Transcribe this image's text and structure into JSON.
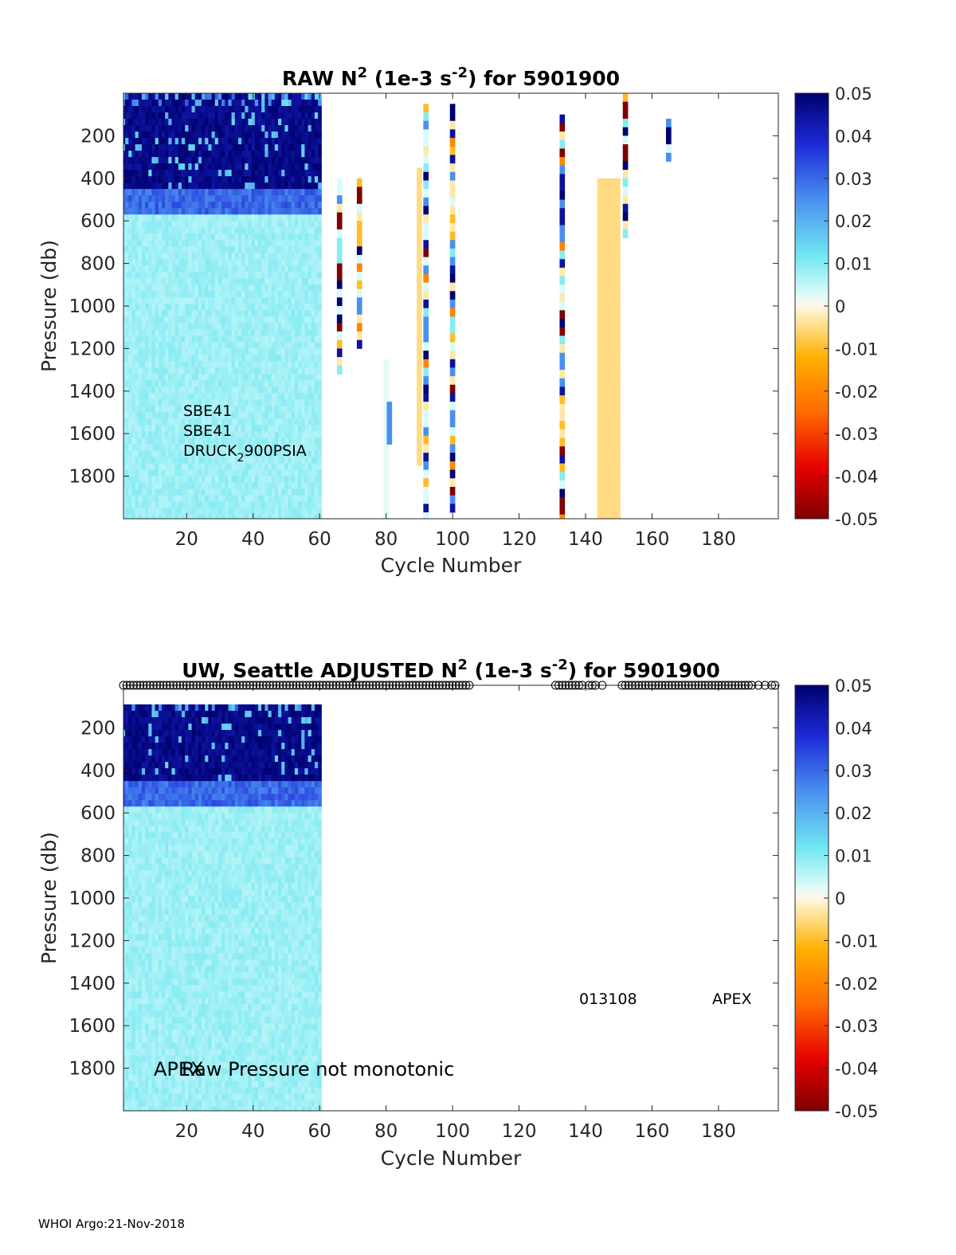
{
  "chart_data": [
    {
      "type": "heatmap",
      "title_parts": [
        "RAW N",
        "2",
        " (1e-3 s",
        "-2",
        ") for 5901900"
      ],
      "xlabel": "Cycle Number",
      "ylabel": "Pressure (db)",
      "xlim": [
        1,
        198
      ],
      "ylim": [
        2000,
        0
      ],
      "x_ticks": [
        "20",
        "40",
        "60",
        "80",
        "100",
        "120",
        "140",
        "160",
        "180"
      ],
      "y_ticks": [
        "200",
        "400",
        "600",
        "800",
        "1000",
        "1200",
        "1400",
        "1600",
        "1800"
      ],
      "colorbar": {
        "range": [
          -0.05,
          0.05
        ],
        "ticks": [
          "0.05",
          "0.04",
          "0.03",
          "0.02",
          "0.01",
          "0",
          "-0.01",
          "-0.02",
          "-0.03",
          "-0.04",
          "-0.05"
        ]
      },
      "annotations": [
        "SBE41",
        "SBE41",
        "DRUCK",
        "2",
        "900PSIA"
      ],
      "data_summary": {
        "cycles_1_60": [
          {
            "p_range": [
              0,
              450
            ],
            "value": 0.05
          },
          {
            "p_range": [
              450,
              550
            ],
            "value": 0.03
          },
          {
            "p_range": [
              550,
              2000
            ],
            "value": 0.008
          }
        ],
        "sparse_columns": [
          {
            "cycle": 66,
            "p_range": [
              400,
              1300
            ],
            "value": "mixed"
          },
          {
            "cycle": 72,
            "p_range": [
              400,
              1200
            ],
            "value": "mixed"
          },
          {
            "cycle": 80,
            "p_range": [
              1250,
              2000
            ],
            "value": 0.002
          },
          {
            "cycle": 81,
            "p_range": [
              1450,
              1650
            ],
            "value": 0.025
          },
          {
            "cycle": 90,
            "p_range": [
              350,
              1750
            ],
            "value": -0.005
          },
          {
            "cycle": 92,
            "p_range": [
              50,
              2000
            ],
            "value": "mixed"
          },
          {
            "cycle": 100,
            "p_range": [
              50,
              1950
            ],
            "value": "mixed"
          },
          {
            "cycle": 133,
            "p_range": [
              100,
              2000
            ],
            "value": "mixed"
          },
          {
            "cycle": 147,
            "p_range": [
              400,
              2000
            ],
            "value": -0.005
          },
          {
            "cycle": 152,
            "p_range": [
              0,
              650
            ],
            "value": "mixed"
          },
          {
            "cycle": 165,
            "p_range": [
              120,
              320
            ],
            "value": "mixed"
          }
        ]
      }
    },
    {
      "type": "heatmap",
      "title_parts": [
        "UW, Seattle  ADJUSTED N",
        "2",
        " (1e-3 s",
        "-2",
        ") for 5901900"
      ],
      "xlabel": "Cycle Number",
      "ylabel": "Pressure (db)",
      "xlim": [
        1,
        198
      ],
      "ylim": [
        2000,
        0
      ],
      "x_ticks": [
        "20",
        "40",
        "60",
        "80",
        "100",
        "120",
        "140",
        "160",
        "180"
      ],
      "y_ticks": [
        "200",
        "400",
        "600",
        "800",
        "1000",
        "1200",
        "1400",
        "1600",
        "1800"
      ],
      "colorbar": {
        "range": [
          -0.05,
          0.05
        ],
        "ticks": [
          "0.05",
          "0.04",
          "0.03",
          "0.02",
          "0.01",
          "0",
          "-0.01",
          "-0.02",
          "-0.03",
          "-0.04",
          "-0.05"
        ]
      },
      "annotations": [
        "013108",
        "APEX",
        "APEX",
        "Raw Pressure not monotonic"
      ],
      "flagged_cycles": [
        1,
        2,
        3,
        4,
        5,
        6,
        7,
        8,
        9,
        10,
        11,
        12,
        13,
        14,
        15,
        16,
        17,
        18,
        19,
        20,
        21,
        22,
        23,
        24,
        25,
        26,
        27,
        28,
        29,
        30,
        31,
        32,
        33,
        34,
        35,
        36,
        37,
        38,
        39,
        40,
        41,
        42,
        43,
        44,
        45,
        46,
        47,
        48,
        49,
        50,
        51,
        52,
        53,
        54,
        55,
        56,
        57,
        58,
        59,
        60,
        61,
        62,
        63,
        64,
        65,
        66,
        67,
        68,
        69,
        70,
        71,
        72,
        73,
        74,
        75,
        76,
        77,
        78,
        79,
        80,
        81,
        82,
        83,
        84,
        85,
        86,
        87,
        88,
        89,
        90,
        91,
        92,
        93,
        94,
        95,
        96,
        97,
        98,
        99,
        100,
        101,
        102,
        103,
        104,
        105,
        131,
        132,
        133,
        134,
        135,
        136,
        137,
        138,
        139,
        141,
        142,
        143,
        145,
        151,
        152,
        153,
        154,
        155,
        156,
        157,
        158,
        159,
        160,
        161,
        162,
        163,
        164,
        165,
        166,
        167,
        168,
        169,
        170,
        171,
        172,
        173,
        174,
        175,
        176,
        177,
        178,
        179,
        180,
        181,
        182,
        183,
        184,
        185,
        186,
        187,
        188,
        189,
        190,
        192,
        194,
        196,
        197
      ],
      "data_summary": {
        "cycles_1_60": [
          {
            "p_range": [
              70,
              450
            ],
            "value": 0.05
          },
          {
            "p_range": [
              450,
              550
            ],
            "value": 0.03
          },
          {
            "p_range": [
              550,
              2000
            ],
            "value": 0.008
          }
        ]
      }
    }
  ],
  "footer": "WHOI Argo:21-Nov-2018"
}
